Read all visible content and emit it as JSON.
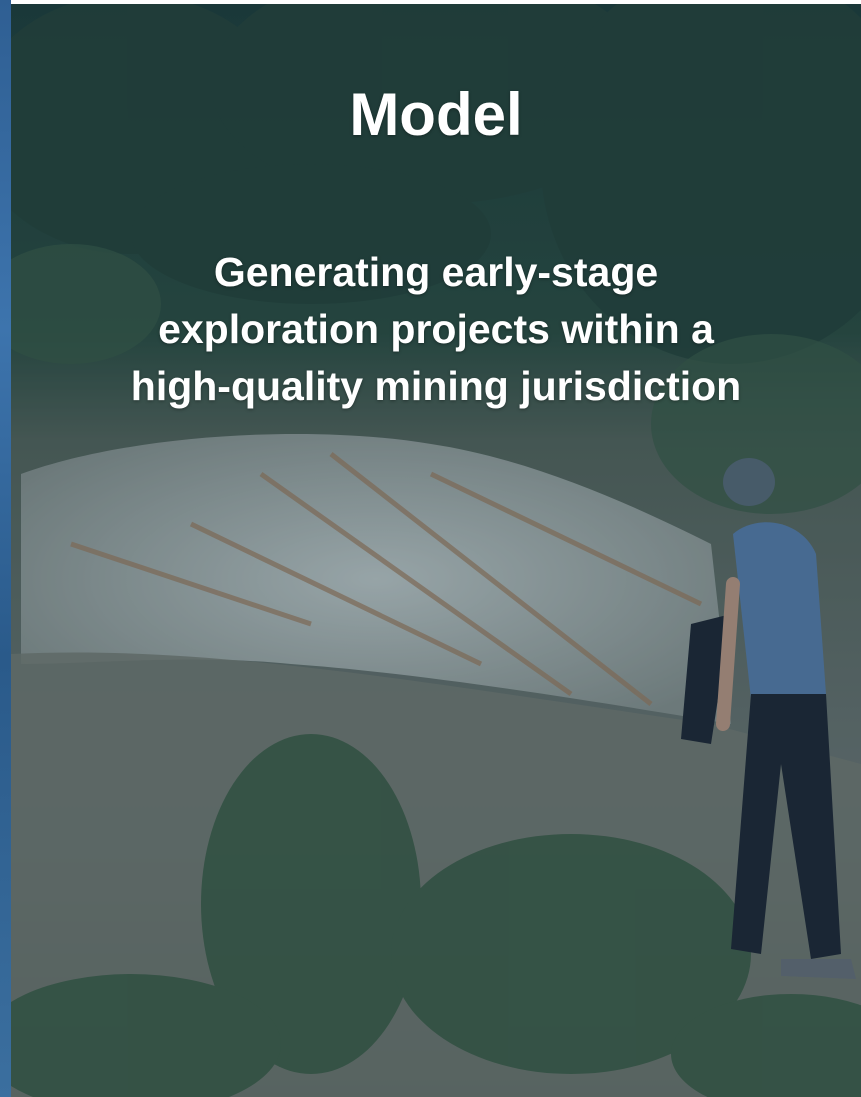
{
  "header": {
    "title": "Model",
    "subtitle_lines": [
      "Generating early-stage",
      "exploration projects within a",
      "high-quality mining jurisdiction"
    ]
  }
}
